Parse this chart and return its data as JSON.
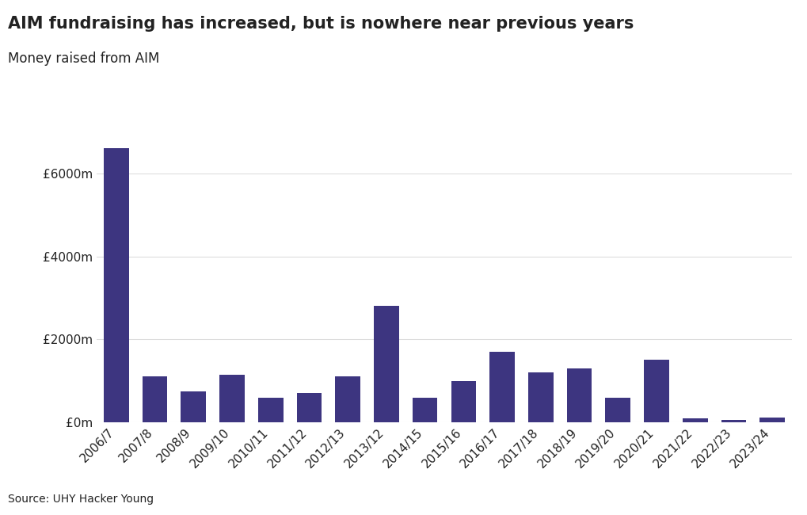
{
  "title": "AIM fundraising has increased, but is nowhere near previous years",
  "subtitle": "Money raised from AIM",
  "source": "Source: UHY Hacker Young",
  "categories": [
    "2006/7",
    "2007/8",
    "2008/9",
    "2009/10",
    "2010/11",
    "2011/12",
    "2012/13",
    "2013/12",
    "2014/15",
    "2015/16",
    "2016/17",
    "2017/18",
    "2018/19",
    "2019/20",
    "2020/21",
    "2021/22",
    "2022/23",
    "2023/24"
  ],
  "values": [
    6600,
    1100,
    750,
    1150,
    600,
    700,
    1100,
    2800,
    600,
    1000,
    1700,
    1200,
    1300,
    600,
    1500,
    100,
    60,
    120
  ],
  "bar_color": "#3d3580",
  "background_color": "#ffffff",
  "ylim": [
    0,
    7200
  ],
  "yticks": [
    0,
    2000,
    4000,
    6000
  ],
  "ytick_labels": [
    "£0m",
    "£2000m",
    "£4000m",
    "£6000m"
  ],
  "title_fontsize": 15,
  "subtitle_fontsize": 12,
  "tick_fontsize": 11,
  "source_fontsize": 10,
  "grid_color": "#dddddd",
  "text_color": "#222222"
}
